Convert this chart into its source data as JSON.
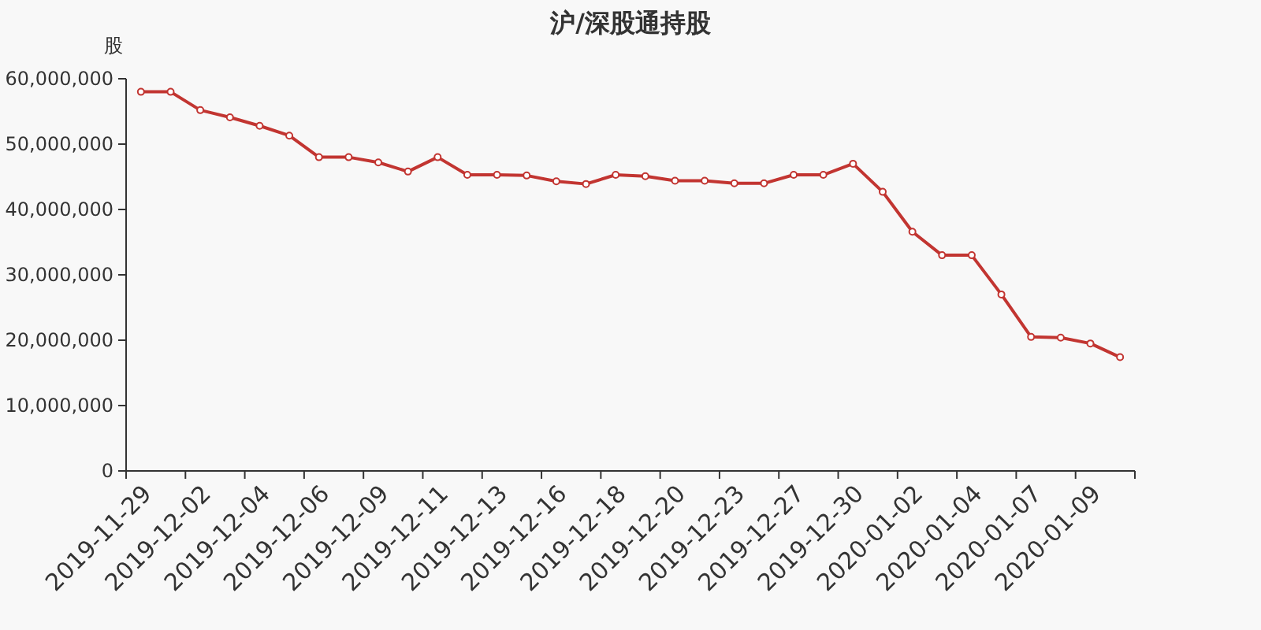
{
  "chart_data": {
    "type": "line",
    "title": "沪/深股通持股",
    "ylabel": "股",
    "categories": [
      "2019-11-29",
      null,
      "2019-12-02",
      null,
      "2019-12-04",
      null,
      "2019-12-06",
      null,
      "2019-12-09",
      null,
      "2019-12-11",
      null,
      "2019-12-13",
      null,
      "2019-12-16",
      null,
      "2019-12-18",
      null,
      "2019-12-20",
      null,
      "2019-12-23",
      null,
      "2019-12-27",
      null,
      "2019-12-30",
      null,
      "2020-01-02",
      null,
      "2020-01-04",
      null,
      "2020-01-07",
      null,
      "2020-01-09",
      null
    ],
    "series": [
      {
        "color": "#c23531",
        "values": [
          58000000,
          58000000,
          55200000,
          54100000,
          52800000,
          51300000,
          48000000,
          48000000,
          47200000,
          45800000,
          48000000,
          45300000,
          45300000,
          45200000,
          44300000,
          43900000,
          45300000,
          45100000,
          44400000,
          44400000,
          44000000,
          44000000,
          45300000,
          45300000,
          47000000,
          42700000,
          36600000,
          33000000,
          33000000,
          27000000,
          20500000,
          20400000,
          19500000,
          17400000
        ]
      }
    ],
    "ylim": [
      0,
      60000000
    ],
    "yticks": [
      {
        "value": 0,
        "label": "0"
      },
      {
        "value": 10000000,
        "label": "10,000,000"
      },
      {
        "value": 20000000,
        "label": "20,000,000"
      },
      {
        "value": 30000000,
        "label": "30,000,000"
      },
      {
        "value": 40000000,
        "label": "40,000,000"
      },
      {
        "value": 50000000,
        "label": "50,000,000"
      },
      {
        "value": 60000000,
        "label": "60,000,000"
      }
    ],
    "marker": "circle",
    "line_style": "solid"
  }
}
